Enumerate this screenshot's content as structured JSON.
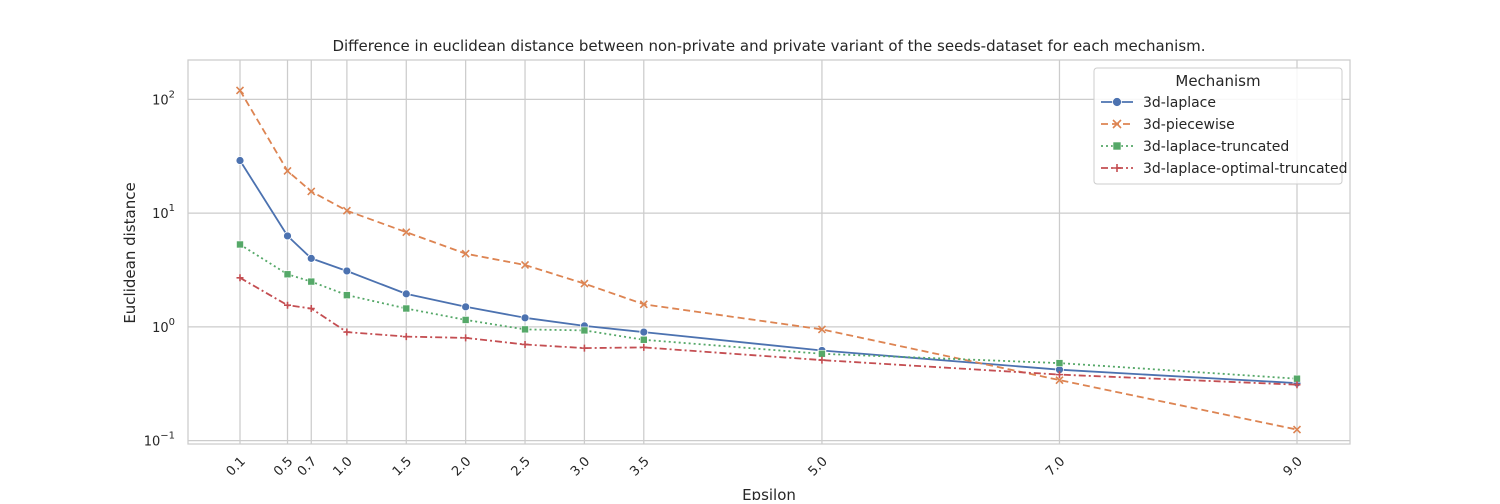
{
  "chart_data": {
    "type": "line",
    "title": "Difference in euclidean distance between non-private and private variant of the seeds-dataset for each mechanism.",
    "xlabel": "Epsilon",
    "ylabel": "Euclidean distance",
    "yscale": "log",
    "ylim": [
      0.1,
      200
    ],
    "x": [
      0.1,
      0.5,
      0.7,
      1.0,
      1.5,
      2.0,
      2.5,
      3.0,
      3.5,
      5.0,
      7.0,
      9.0
    ],
    "x_ticks": [
      "0.1",
      "0.5",
      "0.7",
      "1.0",
      "1.5",
      "2.0",
      "2.5",
      "3.0",
      "3.5",
      "5.0",
      "7.0",
      "9.0"
    ],
    "y_ticks": [
      {
        "value": 0.1,
        "base": "10",
        "exp": "−1"
      },
      {
        "value": 1,
        "base": "10",
        "exp": "0"
      },
      {
        "value": 10,
        "base": "10",
        "exp": "1"
      },
      {
        "value": 100,
        "base": "10",
        "exp": "2"
      }
    ],
    "grid": true,
    "legend": {
      "title": "Mechanism",
      "position": "top-right"
    },
    "series": [
      {
        "name": "3d-laplace",
        "color": "#4c72b0",
        "dash": "",
        "marker": "circle",
        "values": [
          29,
          6.3,
          4.0,
          3.1,
          1.95,
          1.5,
          1.2,
          1.02,
          0.9,
          0.62,
          0.42,
          0.32
        ]
      },
      {
        "name": "3d-piecewise",
        "color": "#dd8452",
        "dash": "7,4",
        "marker": "x",
        "values": [
          120,
          23.5,
          15.5,
          10.5,
          6.8,
          4.4,
          3.5,
          2.4,
          1.58,
          0.95,
          0.34,
          0.125
        ]
      },
      {
        "name": "3d-laplace-truncated",
        "color": "#55a868",
        "dash": "2,3",
        "marker": "square",
        "values": [
          5.3,
          2.9,
          2.5,
          1.9,
          1.45,
          1.15,
          0.95,
          0.93,
          0.77,
          0.58,
          0.48,
          0.35
        ]
      },
      {
        "name": "3d-laplace-optimal-truncated",
        "color": "#c44e52",
        "dash": "7,3,2,3",
        "marker": "plus",
        "values": [
          2.7,
          1.55,
          1.45,
          0.9,
          0.82,
          0.8,
          0.7,
          0.65,
          0.66,
          0.51,
          0.38,
          0.31
        ]
      }
    ]
  }
}
